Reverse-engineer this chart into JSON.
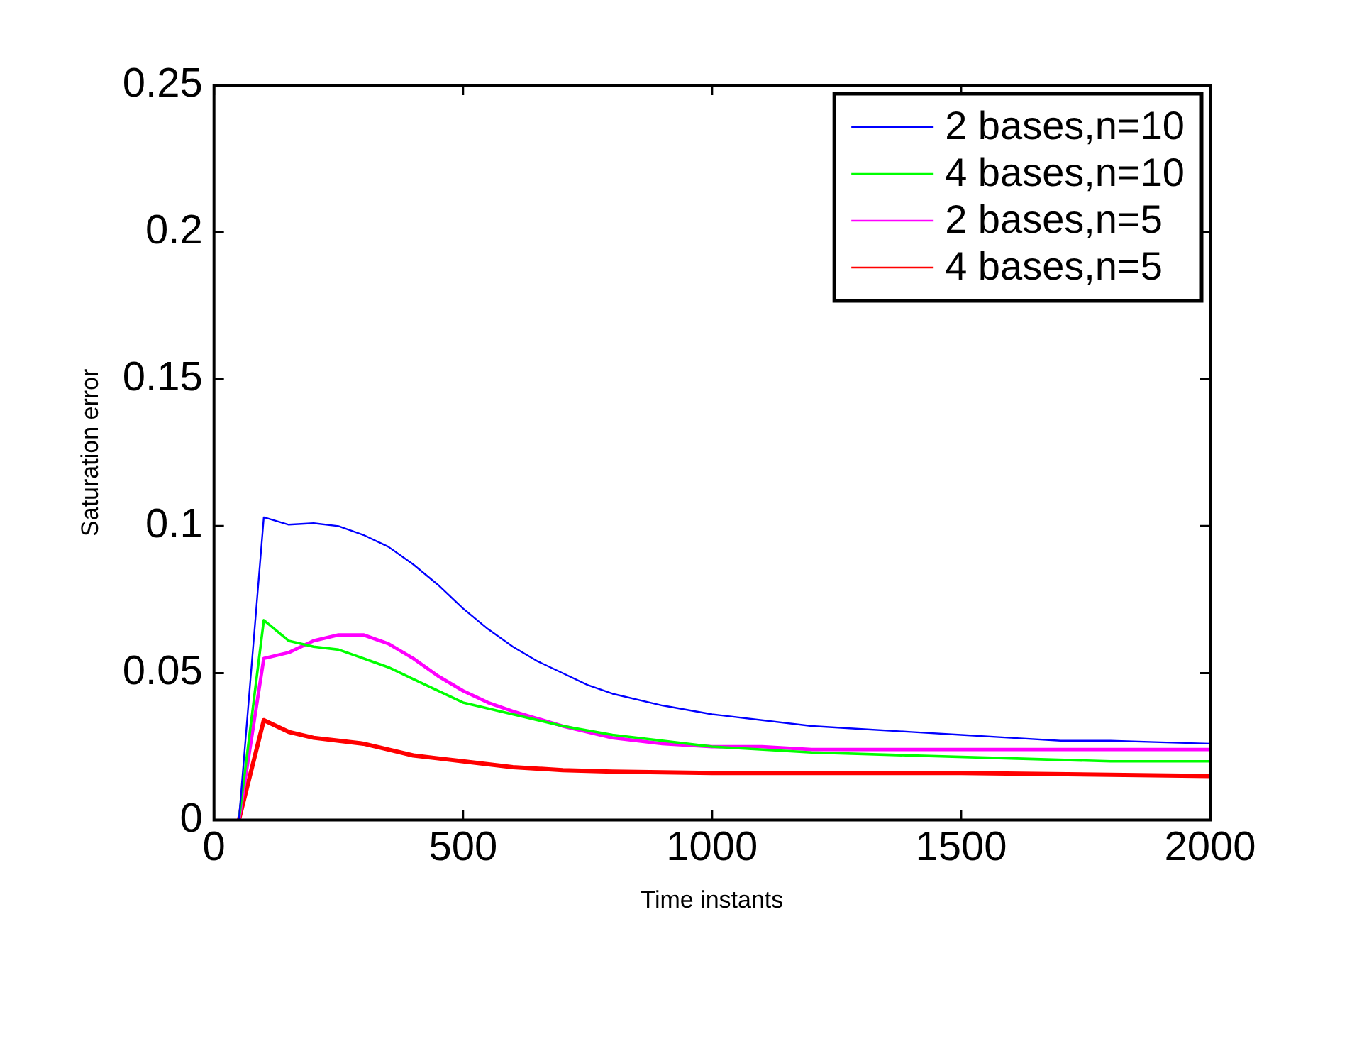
{
  "chart_data": {
    "type": "line",
    "xlabel": "Time instants",
    "ylabel": "Saturation error",
    "xlim": [
      0,
      2000
    ],
    "xticks": [
      0,
      500,
      1000,
      1500,
      2000
    ],
    "ylim": [
      0,
      0.25
    ],
    "yticks": [
      0,
      0.05,
      0.1,
      0.15,
      0.2,
      0.25
    ],
    "grid": false,
    "legend": "top right",
    "marker": "none",
    "line_style": "solid",
    "series": [
      {
        "name": "2 bases,n=10",
        "color": "#0000ff",
        "x": [
          50,
          100,
          150,
          200,
          250,
          300,
          350,
          400,
          450,
          500,
          550,
          600,
          650,
          700,
          750,
          800,
          900,
          1000,
          1100,
          1200,
          1300,
          1400,
          1500,
          1600,
          1700,
          1800,
          1900,
          2000
        ],
        "values": [
          0,
          0.103,
          0.1005,
          0.101,
          0.1,
          0.097,
          0.093,
          0.087,
          0.08,
          0.072,
          0.065,
          0.059,
          0.054,
          0.05,
          0.046,
          0.043,
          0.039,
          0.036,
          0.034,
          0.032,
          0.031,
          0.03,
          0.029,
          0.028,
          0.027,
          0.027,
          0.0265,
          0.026
        ]
      },
      {
        "name": "4 bases,n=10",
        "color": "#00ff00",
        "x": [
          50,
          100,
          150,
          200,
          250,
          300,
          350,
          400,
          450,
          500,
          600,
          700,
          800,
          900,
          1000,
          1200,
          1400,
          1600,
          1800,
          2000
        ],
        "values": [
          0,
          0.068,
          0.061,
          0.059,
          0.058,
          0.055,
          0.052,
          0.048,
          0.044,
          0.04,
          0.036,
          0.032,
          0.029,
          0.027,
          0.025,
          0.023,
          0.022,
          0.021,
          0.02,
          0.02
        ]
      },
      {
        "name": "2 bases,n=5",
        "color": "#ff00ff",
        "x": [
          50,
          100,
          150,
          200,
          250,
          300,
          350,
          400,
          450,
          500,
          550,
          600,
          700,
          800,
          900,
          1000,
          1100,
          1200,
          1400,
          1600,
          2000
        ],
        "values": [
          0,
          0.055,
          0.057,
          0.061,
          0.063,
          0.063,
          0.06,
          0.055,
          0.049,
          0.044,
          0.04,
          0.037,
          0.032,
          0.028,
          0.026,
          0.025,
          0.025,
          0.024,
          0.024,
          0.024,
          0.024
        ]
      },
      {
        "name": "4 bases,n=5",
        "color": "#ff0000",
        "x": [
          50,
          100,
          150,
          200,
          250,
          300,
          350,
          400,
          450,
          500,
          600,
          700,
          800,
          1000,
          1200,
          1500,
          2000
        ],
        "values": [
          0,
          0.034,
          0.03,
          0.028,
          0.027,
          0.026,
          0.024,
          0.022,
          0.021,
          0.02,
          0.018,
          0.017,
          0.0165,
          0.016,
          0.016,
          0.016,
          0.015
        ]
      }
    ]
  }
}
